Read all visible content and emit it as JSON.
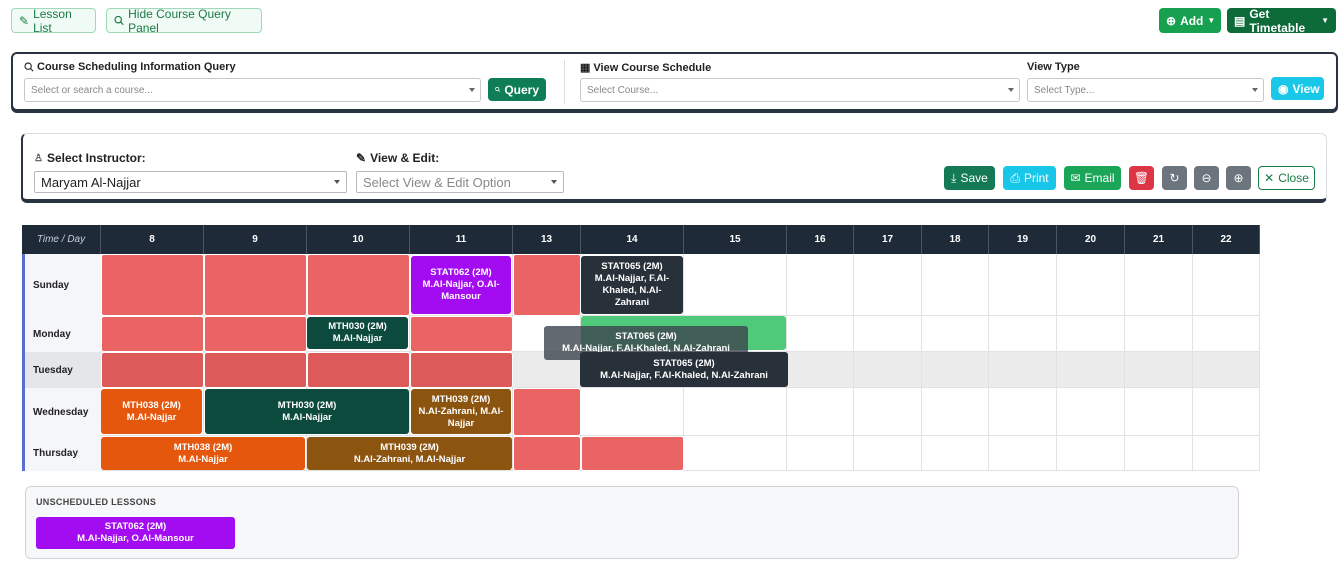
{
  "toolbar": {
    "lesson_list": "Lesson List",
    "hide_query": "Hide Course Query Panel",
    "add": "Add",
    "get_timetable": "Get Timetable"
  },
  "query_panel": {
    "course_query_label": "Course Scheduling Information Query",
    "course_placeholder": "Select or search a course...",
    "query_button": "Query",
    "view_schedule_label": "View Course Schedule",
    "schedule_placeholder": "Select Course...",
    "view_type_label": "View Type",
    "type_placeholder": "Select Type...",
    "view_button": "View"
  },
  "instructor_panel": {
    "instructor_label": "Select Instructor:",
    "instructor_value": "Maryam Al-Najjar",
    "view_edit_label": "View & Edit:",
    "view_edit_placeholder": "Select View & Edit Option",
    "save": "Save",
    "print": "Print",
    "email": "Email",
    "close": "Close"
  },
  "grid": {
    "corner": "Time / Day",
    "hours": [
      "8",
      "9",
      "10",
      "11",
      "13",
      "14",
      "15",
      "16",
      "17",
      "18",
      "19",
      "20",
      "21",
      "22"
    ],
    "days": [
      "Sunday",
      "Monday",
      "Tuesday",
      "Wednesday",
      "Thursday"
    ]
  },
  "lessons": {
    "sun_stat062": {
      "code": "STAT062 (2M)",
      "staff": "M.Al-Najjar, O.Al-Mansour"
    },
    "sun_stat065": {
      "code": "STAT065 (2M)",
      "staff": "M.Al-Najjar, F.Al-Khaled, N.Al-Zahrani"
    },
    "mon_mth030": {
      "code": "MTH030 (2M)",
      "staff": "M.Al-Najjar"
    },
    "drag_ghost": {
      "code": "STAT065 (2M)",
      "staff": "M.Al-Najjar, F.Al-Khaled, N.Al-Zahrani"
    },
    "drag_active": {
      "code": "STAT065 (2M)",
      "staff": "M.Al-Najjar, F.Al-Khaled, N.Al-Zahrani"
    },
    "wed_mth038": {
      "code": "MTH038 (2M)",
      "staff": "M.Al-Najjar"
    },
    "wed_mth030": {
      "code": "MTH030 (2M)",
      "staff": "M.Al-Najjar"
    },
    "wed_mth039": {
      "code": "MTH039 (2M)",
      "staff": "N.Al-Zahrani, M.Al-Najjar"
    },
    "thu_mth038": {
      "code": "MTH038 (2M)",
      "staff": "M.Al-Najjar"
    },
    "thu_mth039": {
      "code": "MTH039 (2M)",
      "staff": "N.Al-Zahrani, M.Al-Najjar"
    }
  },
  "unscheduled": {
    "title": "UNSCHEDULED LESSONS",
    "item": {
      "code": "STAT062 (2M)",
      "staff": "M.Al-Najjar, O.Al-Mansour"
    }
  },
  "colors": {
    "blocked": "#eb6464",
    "purple": "#a30bf0",
    "dark": "#28313a",
    "teal_dark": "#0b4a3c",
    "orange": "#e4570c",
    "brown": "#8b5510",
    "green_drop": "#4fc97a"
  }
}
